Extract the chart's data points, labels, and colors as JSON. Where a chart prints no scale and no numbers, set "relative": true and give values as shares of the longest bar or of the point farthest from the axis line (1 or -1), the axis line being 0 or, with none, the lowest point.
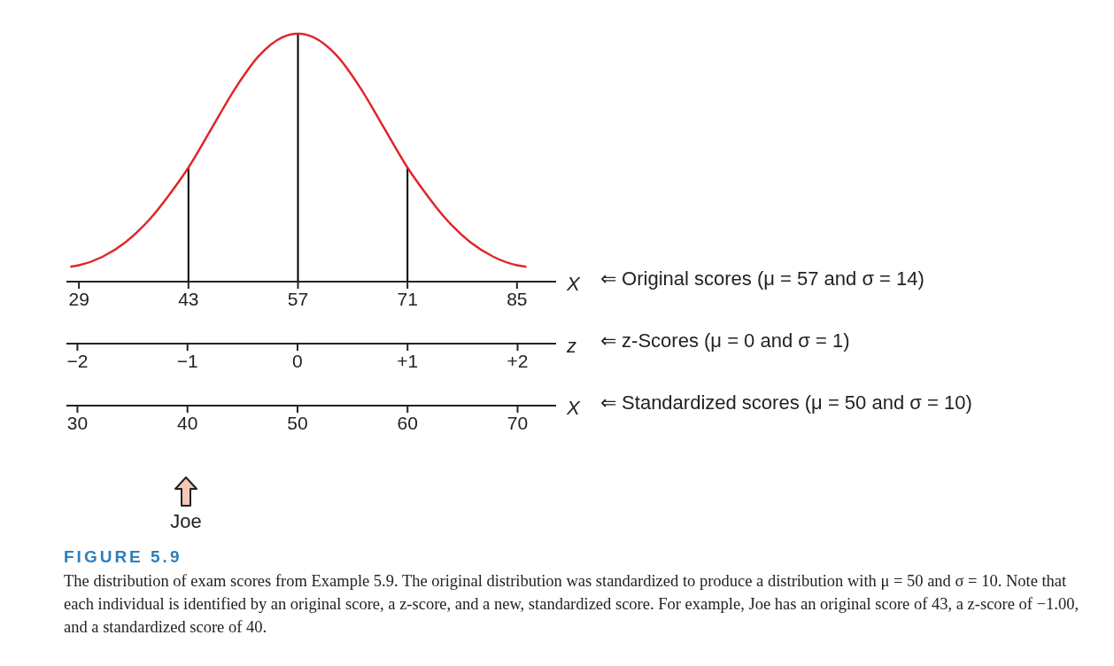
{
  "chart_data": {
    "type": "line",
    "relative": true,
    "x": [
      27.9,
      29,
      32,
      35,
      38,
      41,
      43,
      46,
      49,
      52,
      55,
      57,
      59,
      62,
      65,
      68,
      71,
      73,
      76,
      79,
      82,
      85,
      86.2
    ],
    "series": [
      {
        "color": "#e0262b",
        "values": [
          0.06,
          0.066,
          0.1,
          0.16,
          0.25,
          0.37,
          0.46,
          0.62,
          0.78,
          0.91,
          0.985,
          1,
          0.985,
          0.91,
          0.78,
          0.62,
          0.46,
          0.37,
          0.25,
          0.16,
          0.1,
          0.066,
          0.06
        ]
      }
    ],
    "xlim": [
      27.4,
      90
    ],
    "xticks": [
      29,
      43,
      57,
      71,
      85
    ],
    "xlabel": "X",
    "x2lim": [
      -2.1,
      2.35
    ],
    "x2ticks": [
      {
        "value": -2,
        "label": "−2"
      },
      {
        "value": -1,
        "label": "−1"
      },
      0,
      {
        "value": 1,
        "label": "+1"
      },
      {
        "value": 2,
        "label": "+2"
      }
    ],
    "x2label": "z",
    "ref_lines": [
      {
        "axis": "x",
        "value": 43,
        "color": "#000000"
      },
      {
        "axis": "x",
        "value": 57,
        "color": "#000000"
      },
      {
        "axis": "x",
        "value": 71,
        "color": "#000000"
      }
    ],
    "grid": false,
    "legend": false,
    "marker": "none",
    "line_style": "solid",
    "title": "FIGURE 5.9",
    "annotations": [
      "⇐ Original scores (μ = 57 and σ = 14)",
      "⇐ z-Scores (μ = 0 and σ = 1)",
      "⇐ Standardized scores (μ = 50 and σ = 10)",
      "Joe",
      "The distribution of exam scores from Example 5.9. The original distribution was standardized to produce a distribution with μ = 50 and σ = 10. Note that each individual is identified by an original score, a z-score, and a new, standardized score. For example, Joe has an original score of 43, a z-score of −1.00, and a standardized score of 40.",
      "X",
      "30",
      "40",
      "50",
      "60",
      "70"
    ]
  }
}
